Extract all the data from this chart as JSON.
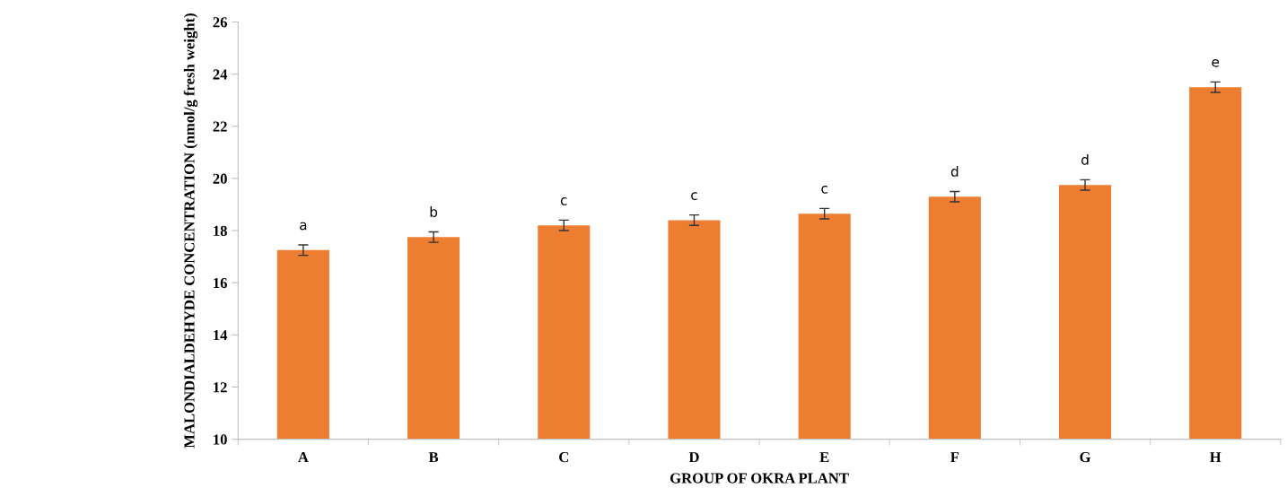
{
  "chart_data": {
    "type": "bar",
    "xlabel": "GROUP OF OKRA PLANT",
    "ylabel": "MALONDIALDEHYDE CONCENTRATION (nmol/g fresh weight)",
    "categories": [
      "A",
      "B",
      "C",
      "D",
      "E",
      "F",
      "G",
      "H"
    ],
    "values": [
      17.25,
      17.75,
      18.2,
      18.4,
      18.65,
      19.3,
      19.75,
      23.5
    ],
    "errors": [
      0.2,
      0.2,
      0.2,
      0.2,
      0.2,
      0.2,
      0.2,
      0.2
    ],
    "color": "#ed7d31",
    "ylim": [
      10,
      26
    ],
    "yticks": [
      10,
      12,
      14,
      16,
      18,
      20,
      22,
      24,
      26
    ],
    "grid": false,
    "annotations": [
      {
        "text": "a",
        "x": "A",
        "y": 17.25
      },
      {
        "text": "b",
        "x": "B",
        "y": 17.75
      },
      {
        "text": "c",
        "x": "C",
        "y": 18.2
      },
      {
        "text": "c",
        "x": "D",
        "y": 18.4
      },
      {
        "text": "c",
        "x": "E",
        "y": 18.65
      },
      {
        "text": "d",
        "x": "F",
        "y": 19.3
      },
      {
        "text": "d",
        "x": "G",
        "y": 19.75
      },
      {
        "text": "e",
        "x": "H",
        "y": 23.5
      }
    ]
  }
}
